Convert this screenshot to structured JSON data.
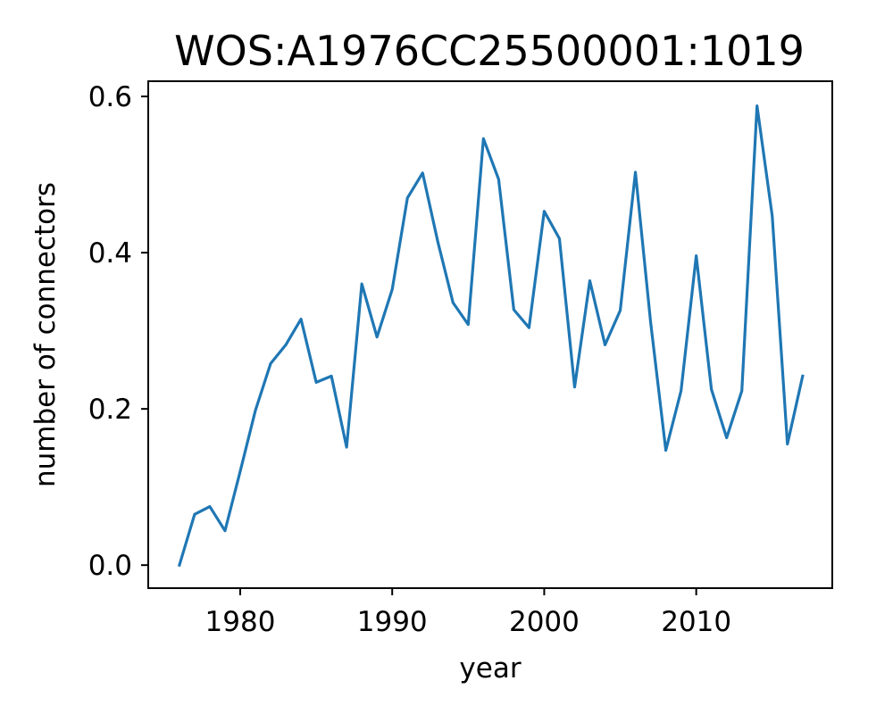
{
  "chart_data": {
    "type": "line",
    "title": "WOS:A1976CC25500001:1019",
    "xlabel": "year",
    "ylabel": "number of connectors",
    "xlim": [
      1973.95,
      2018.95
    ],
    "ylim": [
      -0.0295,
      0.6195
    ],
    "xticks": [
      1980,
      1990,
      2000,
      2010
    ],
    "xtick_labels": [
      "1980",
      "1990",
      "2000",
      "2010"
    ],
    "yticks": [
      0.0,
      0.2,
      0.4,
      0.6
    ],
    "ytick_labels": [
      "0.0",
      "0.2",
      "0.4",
      "0.6"
    ],
    "grid": false,
    "series": [
      {
        "color": "#1f77b4",
        "x": [
          1976,
          1977,
          1978,
          1979,
          1980,
          1981,
          1982,
          1983,
          1984,
          1985,
          1986,
          1987,
          1988,
          1989,
          1990,
          1991,
          1992,
          1993,
          1994,
          1995,
          1996,
          1997,
          1998,
          1999,
          2000,
          2001,
          2002,
          2003,
          2004,
          2005,
          2006,
          2007,
          2008,
          2009,
          2010,
          2011,
          2012,
          2013,
          2014,
          2015,
          2016,
          2017
        ],
        "y": [
          0.0,
          0.065,
          0.075,
          0.044,
          0.12,
          0.198,
          0.258,
          0.282,
          0.315,
          0.234,
          0.242,
          0.151,
          0.36,
          0.292,
          0.353,
          0.47,
          0.502,
          0.414,
          0.336,
          0.308,
          0.546,
          0.494,
          0.327,
          0.304,
          0.453,
          0.418,
          0.228,
          0.364,
          0.282,
          0.326,
          0.503,
          0.311,
          0.147,
          0.223,
          0.396,
          0.225,
          0.163,
          0.223,
          0.588,
          0.447,
          0.155,
          0.242
        ]
      }
    ]
  }
}
